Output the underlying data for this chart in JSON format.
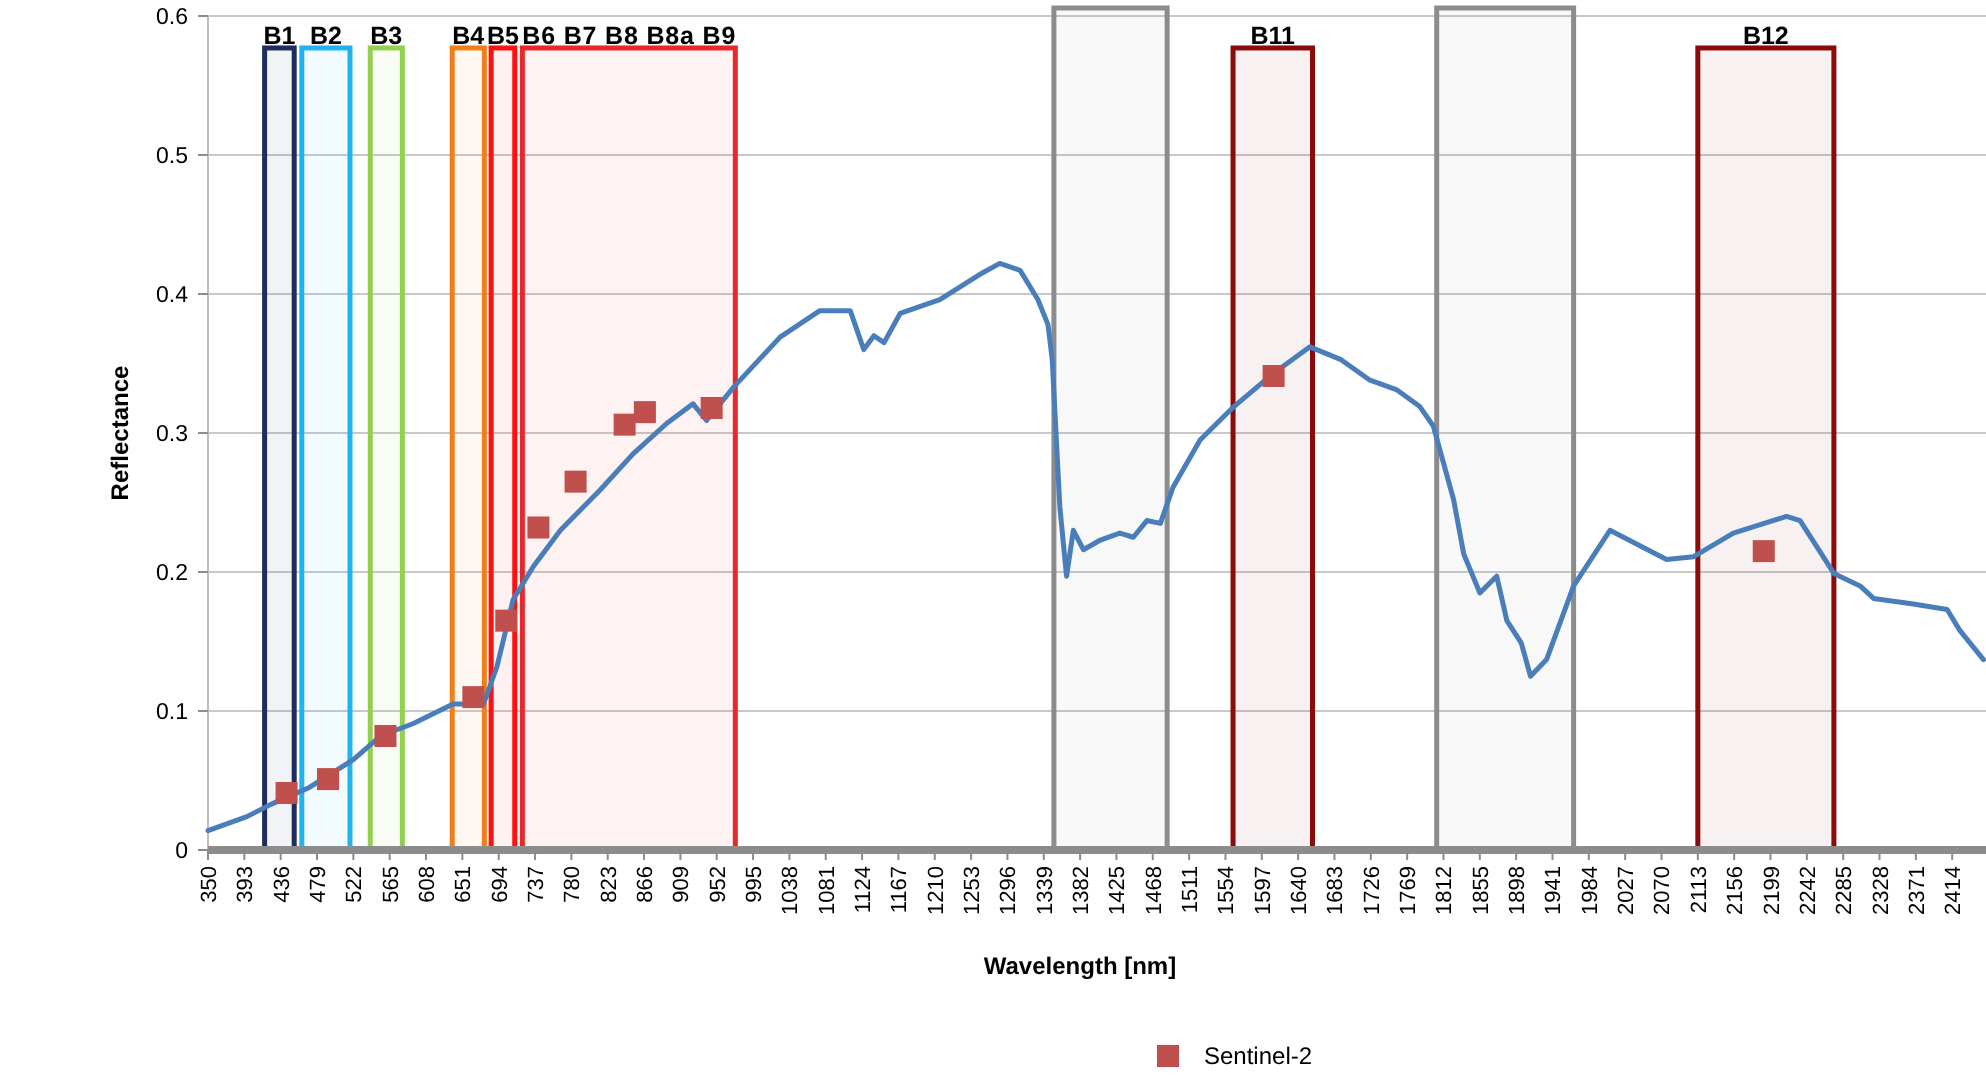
{
  "chart_data": {
    "type": "line",
    "xlabel": "Wavelength [nm]",
    "ylabel": "Reflectance",
    "xlim": [
      350,
      2454
    ],
    "ylim": [
      0,
      0.6
    ],
    "xticks": [
      350,
      393,
      436,
      479,
      522,
      565,
      608,
      651,
      694,
      737,
      780,
      823,
      866,
      909,
      952,
      995,
      1038,
      1081,
      1124,
      1167,
      1210,
      1253,
      1296,
      1339,
      1382,
      1425,
      1468,
      1511,
      1554,
      1597,
      1640,
      1683,
      1726,
      1769,
      1812,
      1855,
      1898,
      1941,
      1984,
      2027,
      2070,
      2113,
      2156,
      2199,
      2242,
      2285,
      2328,
      2371,
      2414
    ],
    "yticks": [
      0,
      0.1,
      0.2,
      0.3,
      0.4,
      0.5,
      0.6
    ],
    "grid": "y",
    "legend": "bottom",
    "line_style": "solid",
    "series": [
      {
        "color": "#4a7ebb",
        "x": [
          350,
          396,
          425,
          470,
          522,
          554,
          593,
          640,
          676,
          692,
          711,
          735,
          767,
          814,
          853,
          893,
          924,
          940,
          972,
          1027,
          1074,
          1110,
          1126,
          1138,
          1150,
          1169,
          1216,
          1263,
          1287,
          1311,
          1332,
          1344,
          1349,
          1358,
          1366,
          1374,
          1386,
          1406,
          1429,
          1445,
          1461,
          1477,
          1492,
          1524,
          1564,
          1611,
          1654,
          1690,
          1725,
          1757,
          1784,
          1800,
          1824,
          1836,
          1855,
          1875,
          1887,
          1904,
          1915,
          1934,
          1966,
          2009,
          2076,
          2108,
          2155,
          2218,
          2234,
          2274,
          2305,
          2321,
          2368,
          2408,
          2423,
          2451
        ],
        "values": [
          0.014,
          0.024,
          0.033,
          0.045,
          0.065,
          0.082,
          0.091,
          0.105,
          0.105,
          0.132,
          0.18,
          0.204,
          0.23,
          0.259,
          0.285,
          0.307,
          0.321,
          0.309,
          0.333,
          0.369,
          0.388,
          0.388,
          0.36,
          0.37,
          0.365,
          0.386,
          0.396,
          0.414,
          0.422,
          0.417,
          0.396,
          0.378,
          0.353,
          0.247,
          0.197,
          0.23,
          0.216,
          0.223,
          0.228,
          0.225,
          0.237,
          0.235,
          0.261,
          0.295,
          0.319,
          0.343,
          0.362,
          0.353,
          0.338,
          0.331,
          0.319,
          0.305,
          0.252,
          0.213,
          0.185,
          0.197,
          0.165,
          0.149,
          0.125,
          0.137,
          0.19,
          0.23,
          0.209,
          0.211,
          0.228,
          0.24,
          0.237,
          0.199,
          0.19,
          0.181,
          0.177,
          0.173,
          0.158,
          0.137
        ]
      },
      {
        "type": "scatter",
        "name": "Sentinel-2",
        "color": "#c0504d",
        "marker": "square",
        "x": [
          443,
          492,
          560,
          664,
          703,
          741,
          785,
          843,
          867,
          946,
          1611,
          2191
        ],
        "values": [
          0.041,
          0.051,
          0.082,
          0.11,
          0.165,
          0.232,
          0.265,
          0.306,
          0.315,
          0.318,
          0.341,
          0.215
        ]
      }
    ],
    "bands": [
      {
        "axis": "x",
        "from": 417,
        "to": 452,
        "label": "B1",
        "color": "#1f2d5e"
      },
      {
        "axis": "x",
        "from": 461,
        "to": 518,
        "label": "B2",
        "color": "#1fb4f0"
      },
      {
        "axis": "x",
        "from": 542,
        "to": 580,
        "label": "B3",
        "color": "#92d050"
      },
      {
        "axis": "x",
        "from": 639,
        "to": 677,
        "label": "B4",
        "color": "#f07f1a"
      },
      {
        "axis": "x",
        "from": 685,
        "to": 713,
        "label": "B5",
        "color": "#ff1010"
      },
      {
        "axis": "x",
        "from": 722,
        "to": 974,
        "label": "B6 B7 B8 B8a B9",
        "color": "#e8282a"
      },
      {
        "axis": "x",
        "from": 1351,
        "to": 1485,
        "label": null,
        "color": "#8c8c8c"
      },
      {
        "axis": "x",
        "from": 1563,
        "to": 1657,
        "label": "B11",
        "color": "#8b0b0b"
      },
      {
        "axis": "x",
        "from": 1804,
        "to": 1966,
        "label": null,
        "color": "#8c8c8c"
      },
      {
        "axis": "x",
        "from": 2113,
        "to": 2274,
        "label": "B12",
        "color": "#8b0b0b"
      }
    ]
  }
}
